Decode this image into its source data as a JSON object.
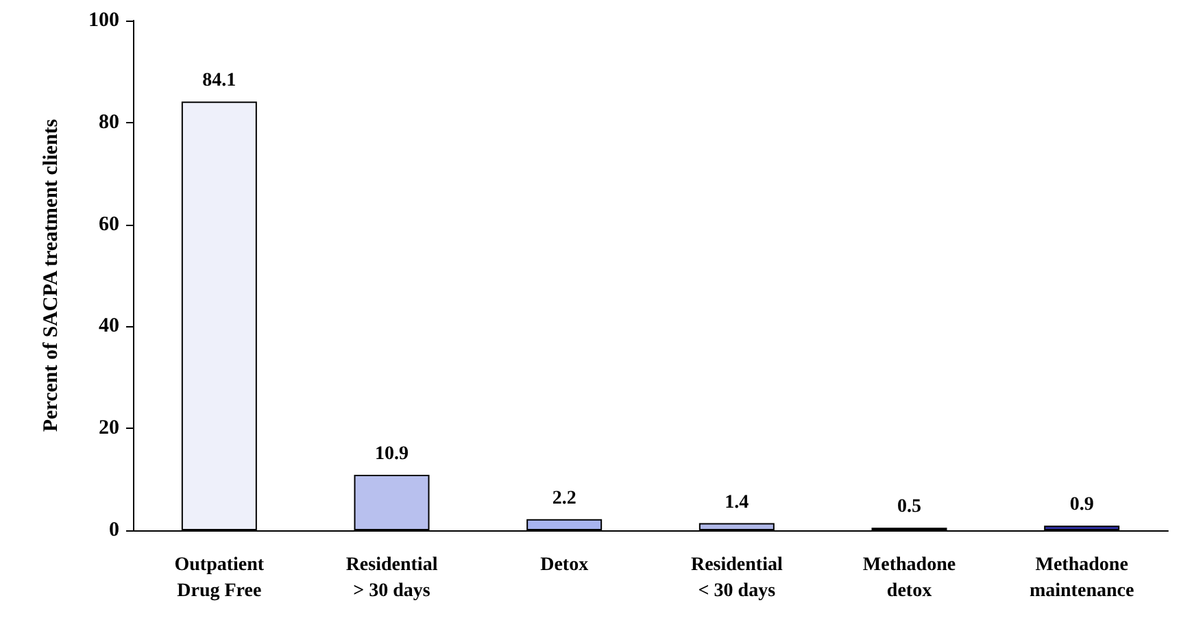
{
  "chart_data": {
    "type": "bar",
    "ylabel": "Percent of SACPA treatment clients",
    "categories": [
      "Outpatient\nDrug Free",
      "Residential\n> 30 days",
      "Detox",
      "Residential\n< 30 days",
      "Methadone\ndetox",
      "Methadone\nmaintenance"
    ],
    "values": [
      84.1,
      10.9,
      2.2,
      1.4,
      0.5,
      0.9
    ],
    "colors": [
      "#eef0fa",
      "#b8c0ee",
      "#a8b4f0",
      "#b0b8e8",
      "#888899",
      "#3333aa"
    ],
    "ylim": [
      0,
      100
    ],
    "yticks": [
      0,
      20,
      40,
      60,
      80,
      100
    ],
    "grid": false,
    "data_labels": true
  }
}
